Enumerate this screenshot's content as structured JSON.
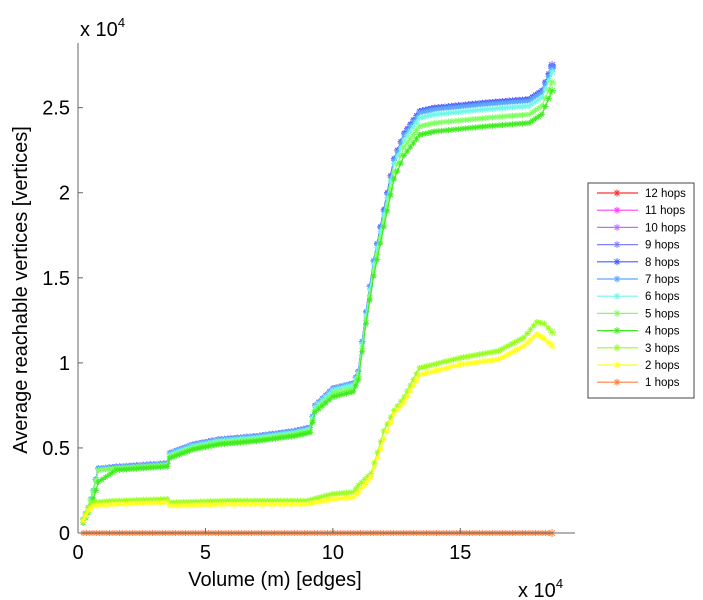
{
  "chart_data": {
    "type": "line",
    "title": "",
    "xlabel": "Volume (m) [edges]",
    "ylabel": "Average reachable vertices [vertices]",
    "x_multiplier": "x 10",
    "x_multiplier_exp": "4",
    "y_multiplier": "x 10",
    "y_multiplier_exp": "4",
    "xlim": [
      0,
      19.5
    ],
    "ylim": [
      0,
      2.88
    ],
    "xticks": [
      0,
      5,
      10,
      15
    ],
    "xtick_labels": [
      "0",
      "5",
      "10",
      "15"
    ],
    "yticks": [
      0,
      0.5,
      1,
      1.5,
      2,
      2.5
    ],
    "ytick_labels": [
      "0",
      "0.5",
      "1",
      "1.5",
      "2",
      "2.5"
    ],
    "grid": false,
    "legend_position": "right",
    "series": [
      {
        "name": "12 hops",
        "color": "#ff3030",
        "x": [
          0.2,
          0.4,
          0.6,
          0.8,
          1.5,
          3.5,
          3.6,
          4.5,
          5.5,
          7,
          8.5,
          9.1,
          9.3,
          10,
          10.8,
          11,
          11.3,
          11.6,
          12,
          12.4,
          12.8,
          13.4,
          14,
          16,
          17.7,
          18.2,
          18.6
        ],
        "y": [
          0.08,
          0.15,
          0.25,
          0.38,
          0.39,
          0.41,
          0.47,
          0.52,
          0.55,
          0.57,
          0.6,
          0.62,
          0.75,
          0.85,
          0.88,
          0.95,
          1.3,
          1.6,
          1.9,
          2.2,
          2.35,
          2.48,
          2.5,
          2.53,
          2.55,
          2.6,
          2.75
        ]
      },
      {
        "name": "11 hops",
        "color": "#ff40ff",
        "x": [
          0.2,
          0.4,
          0.6,
          0.8,
          1.5,
          3.5,
          3.6,
          4.5,
          5.5,
          7,
          8.5,
          9.1,
          9.3,
          10,
          10.8,
          11,
          11.3,
          11.6,
          12,
          12.4,
          12.8,
          13.4,
          14,
          16,
          17.7,
          18.2,
          18.6
        ],
        "y": [
          0.08,
          0.15,
          0.25,
          0.38,
          0.39,
          0.41,
          0.47,
          0.52,
          0.55,
          0.57,
          0.6,
          0.62,
          0.75,
          0.85,
          0.88,
          0.95,
          1.3,
          1.6,
          1.9,
          2.2,
          2.35,
          2.48,
          2.5,
          2.53,
          2.55,
          2.6,
          2.75
        ]
      },
      {
        "name": "10 hops",
        "color": "#c070ff",
        "x": [
          0.2,
          0.4,
          0.6,
          0.8,
          1.5,
          3.5,
          3.6,
          4.5,
          5.5,
          7,
          8.5,
          9.1,
          9.3,
          10,
          10.8,
          11,
          11.3,
          11.6,
          12,
          12.4,
          12.8,
          13.4,
          14,
          16,
          17.7,
          18.2,
          18.6
        ],
        "y": [
          0.08,
          0.15,
          0.25,
          0.38,
          0.39,
          0.41,
          0.47,
          0.52,
          0.55,
          0.57,
          0.6,
          0.62,
          0.75,
          0.85,
          0.88,
          0.95,
          1.3,
          1.6,
          1.9,
          2.2,
          2.35,
          2.48,
          2.5,
          2.53,
          2.55,
          2.6,
          2.75
        ]
      },
      {
        "name": "9 hops",
        "color": "#8080ff",
        "x": [
          0.2,
          0.4,
          0.6,
          0.8,
          1.5,
          3.5,
          3.6,
          4.5,
          5.5,
          7,
          8.5,
          9.1,
          9.3,
          10,
          10.8,
          11,
          11.3,
          11.6,
          12,
          12.4,
          12.8,
          13.4,
          14,
          16,
          17.7,
          18.2,
          18.6
        ],
        "y": [
          0.08,
          0.15,
          0.25,
          0.38,
          0.39,
          0.41,
          0.47,
          0.52,
          0.55,
          0.57,
          0.6,
          0.62,
          0.75,
          0.85,
          0.88,
          0.95,
          1.3,
          1.6,
          1.9,
          2.2,
          2.35,
          2.48,
          2.5,
          2.53,
          2.55,
          2.6,
          2.75
        ]
      },
      {
        "name": "8 hops",
        "color": "#4060ff",
        "x": [
          0.2,
          0.4,
          0.6,
          0.8,
          1.5,
          3.5,
          3.6,
          4.5,
          5.5,
          7,
          8.5,
          9.1,
          9.3,
          10,
          10.8,
          11,
          11.3,
          11.6,
          12,
          12.4,
          12.8,
          13.4,
          14,
          16,
          17.7,
          18.2,
          18.6
        ],
        "y": [
          0.08,
          0.15,
          0.25,
          0.38,
          0.39,
          0.41,
          0.47,
          0.52,
          0.55,
          0.57,
          0.6,
          0.62,
          0.75,
          0.85,
          0.88,
          0.95,
          1.3,
          1.6,
          1.9,
          2.2,
          2.35,
          2.48,
          2.5,
          2.53,
          2.55,
          2.6,
          2.74
        ]
      },
      {
        "name": "7 hops",
        "color": "#60a8ff",
        "x": [
          0.2,
          0.4,
          0.6,
          0.8,
          1.5,
          3.5,
          3.6,
          4.5,
          5.5,
          7,
          8.5,
          9.1,
          9.3,
          10,
          10.8,
          11,
          11.3,
          11.6,
          12,
          12.4,
          12.8,
          13.4,
          14,
          16,
          17.7,
          18.2,
          18.6
        ],
        "y": [
          0.08,
          0.15,
          0.25,
          0.38,
          0.39,
          0.41,
          0.47,
          0.52,
          0.55,
          0.57,
          0.6,
          0.62,
          0.75,
          0.85,
          0.88,
          0.95,
          1.3,
          1.6,
          1.89,
          2.19,
          2.34,
          2.47,
          2.49,
          2.52,
          2.54,
          2.59,
          2.73
        ]
      },
      {
        "name": "6 hops",
        "color": "#70f8e8",
        "x": [
          0.2,
          0.4,
          0.6,
          0.8,
          1.5,
          3.5,
          3.6,
          4.5,
          5.5,
          7,
          8.5,
          9.1,
          9.3,
          10,
          10.8,
          11,
          11.3,
          11.6,
          12,
          12.4,
          12.8,
          13.4,
          14,
          16,
          17.7,
          18.2,
          18.6
        ],
        "y": [
          0.08,
          0.15,
          0.25,
          0.37,
          0.38,
          0.4,
          0.46,
          0.51,
          0.54,
          0.56,
          0.59,
          0.61,
          0.74,
          0.84,
          0.87,
          0.94,
          1.28,
          1.58,
          1.87,
          2.17,
          2.31,
          2.44,
          2.46,
          2.49,
          2.51,
          2.56,
          2.71
        ]
      },
      {
        "name": "5 hops",
        "color": "#80ff60",
        "x": [
          0.2,
          0.4,
          0.6,
          0.8,
          1.5,
          3.5,
          3.6,
          4.5,
          5.5,
          7,
          8.5,
          9.1,
          9.3,
          10,
          10.8,
          11,
          11.3,
          11.6,
          12,
          12.4,
          12.8,
          13.4,
          14,
          16,
          17.7,
          18.2,
          18.6
        ],
        "y": [
          0.08,
          0.14,
          0.24,
          0.37,
          0.38,
          0.4,
          0.45,
          0.5,
          0.53,
          0.55,
          0.58,
          0.6,
          0.72,
          0.82,
          0.85,
          0.92,
          1.25,
          1.54,
          1.83,
          2.12,
          2.27,
          2.39,
          2.41,
          2.44,
          2.46,
          2.51,
          2.65
        ]
      },
      {
        "name": "4 hops",
        "color": "#40ec20",
        "x": [
          0.2,
          0.4,
          0.6,
          0.8,
          1.5,
          3.5,
          3.6,
          4.5,
          5.5,
          7,
          8.5,
          9.1,
          9.3,
          10,
          10.8,
          11,
          11.3,
          11.6,
          12,
          12.4,
          12.8,
          13.4,
          14,
          16,
          17.7,
          18.2,
          18.6
        ],
        "y": [
          0.06,
          0.12,
          0.2,
          0.3,
          0.37,
          0.39,
          0.44,
          0.49,
          0.52,
          0.54,
          0.57,
          0.59,
          0.71,
          0.8,
          0.83,
          0.9,
          1.23,
          1.51,
          1.8,
          2.08,
          2.22,
          2.34,
          2.36,
          2.39,
          2.41,
          2.46,
          2.6
        ]
      },
      {
        "name": "3 hops",
        "color": "#98ff20",
        "x": [
          0.2,
          0.4,
          0.6,
          1.5,
          3.5,
          3.6,
          6,
          9,
          10,
          10.8,
          11,
          11.5,
          12,
          12.4,
          12.8,
          13.4,
          15,
          16.5,
          17.5,
          18.0,
          18.3,
          18.6
        ],
        "y": [
          0.08,
          0.15,
          0.18,
          0.19,
          0.2,
          0.18,
          0.19,
          0.19,
          0.23,
          0.24,
          0.28,
          0.35,
          0.6,
          0.72,
          0.8,
          0.97,
          1.03,
          1.07,
          1.15,
          1.24,
          1.23,
          1.18
        ]
      },
      {
        "name": "2 hops",
        "color": "#ffff20",
        "x": [
          0.2,
          0.4,
          0.6,
          1.5,
          3.5,
          3.6,
          6,
          9,
          10,
          10.8,
          11,
          11.5,
          12,
          12.4,
          12.8,
          13.4,
          15,
          16.5,
          17.5,
          18.0,
          18.3,
          18.6
        ],
        "y": [
          0.07,
          0.13,
          0.16,
          0.17,
          0.18,
          0.16,
          0.17,
          0.17,
          0.2,
          0.21,
          0.24,
          0.33,
          0.55,
          0.7,
          0.77,
          0.93,
          0.99,
          1.02,
          1.1,
          1.17,
          1.14,
          1.1
        ]
      },
      {
        "name": "1 hops",
        "color": "#ff8040",
        "x": [
          0.2,
          18.6
        ],
        "y": [
          0,
          0
        ]
      }
    ]
  }
}
